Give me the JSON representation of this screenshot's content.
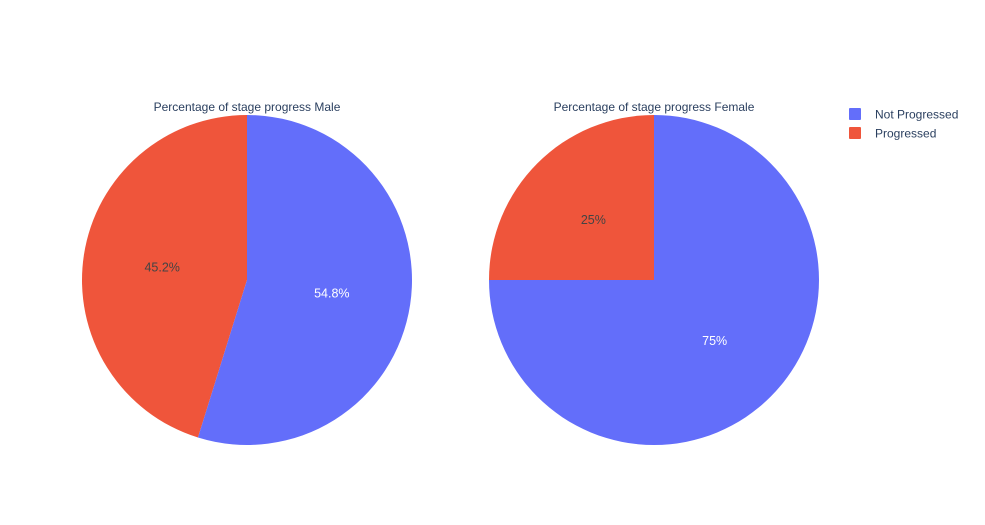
{
  "chart_data": [
    {
      "type": "pie",
      "title": "Percentage of stage progress Male",
      "categories": [
        "Not Progressed",
        "Progressed"
      ],
      "values": [
        54.8,
        45.2
      ],
      "labels": [
        "54.8%",
        "45.2%"
      ],
      "colors": [
        "#636efa",
        "#ef553b"
      ],
      "label_colors": [
        "#ffffff",
        "#444444"
      ]
    },
    {
      "type": "pie",
      "title": "Percentage of stage progress Female",
      "categories": [
        "Not Progressed",
        "Progressed"
      ],
      "values": [
        75,
        25
      ],
      "labels": [
        "75%",
        "25%"
      ],
      "colors": [
        "#636efa",
        "#ef553b"
      ],
      "label_colors": [
        "#ffffff",
        "#444444"
      ]
    }
  ],
  "legend": {
    "placement": "top-right",
    "items": [
      {
        "label": "Not Progressed",
        "color": "#636efa"
      },
      {
        "label": "Progressed",
        "color": "#ef553b"
      }
    ]
  }
}
